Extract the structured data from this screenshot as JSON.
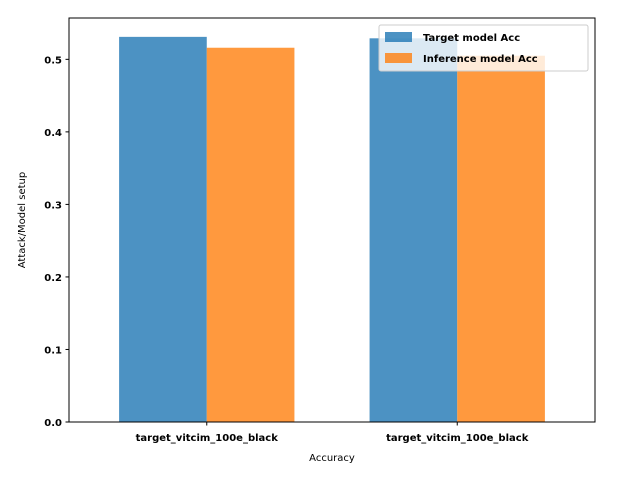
{
  "chart_data": {
    "type": "bar",
    "categories": [
      "target_vitcim_100e_black",
      "target_vitcim_100e_black"
    ],
    "series": [
      {
        "name": "Target model Acc",
        "values": [
          0.531,
          0.529
        ],
        "color": "#1f77b4"
      },
      {
        "name": "Inference model Acc",
        "values": [
          0.516,
          0.505
        ],
        "color": "#ff7f0e"
      }
    ],
    "xlabel": "Accuracy",
    "ylabel": "Attack/Model setup",
    "ylim": [
      0,
      0.557
    ],
    "yticks": [
      0.0,
      0.1,
      0.2,
      0.3,
      0.4,
      0.5
    ],
    "ytick_labels": [
      "0.0",
      "0.1",
      "0.2",
      "0.3",
      "0.4",
      "0.5"
    ],
    "bar_alpha": 0.8,
    "grid": false,
    "legend_position": "top-right"
  }
}
